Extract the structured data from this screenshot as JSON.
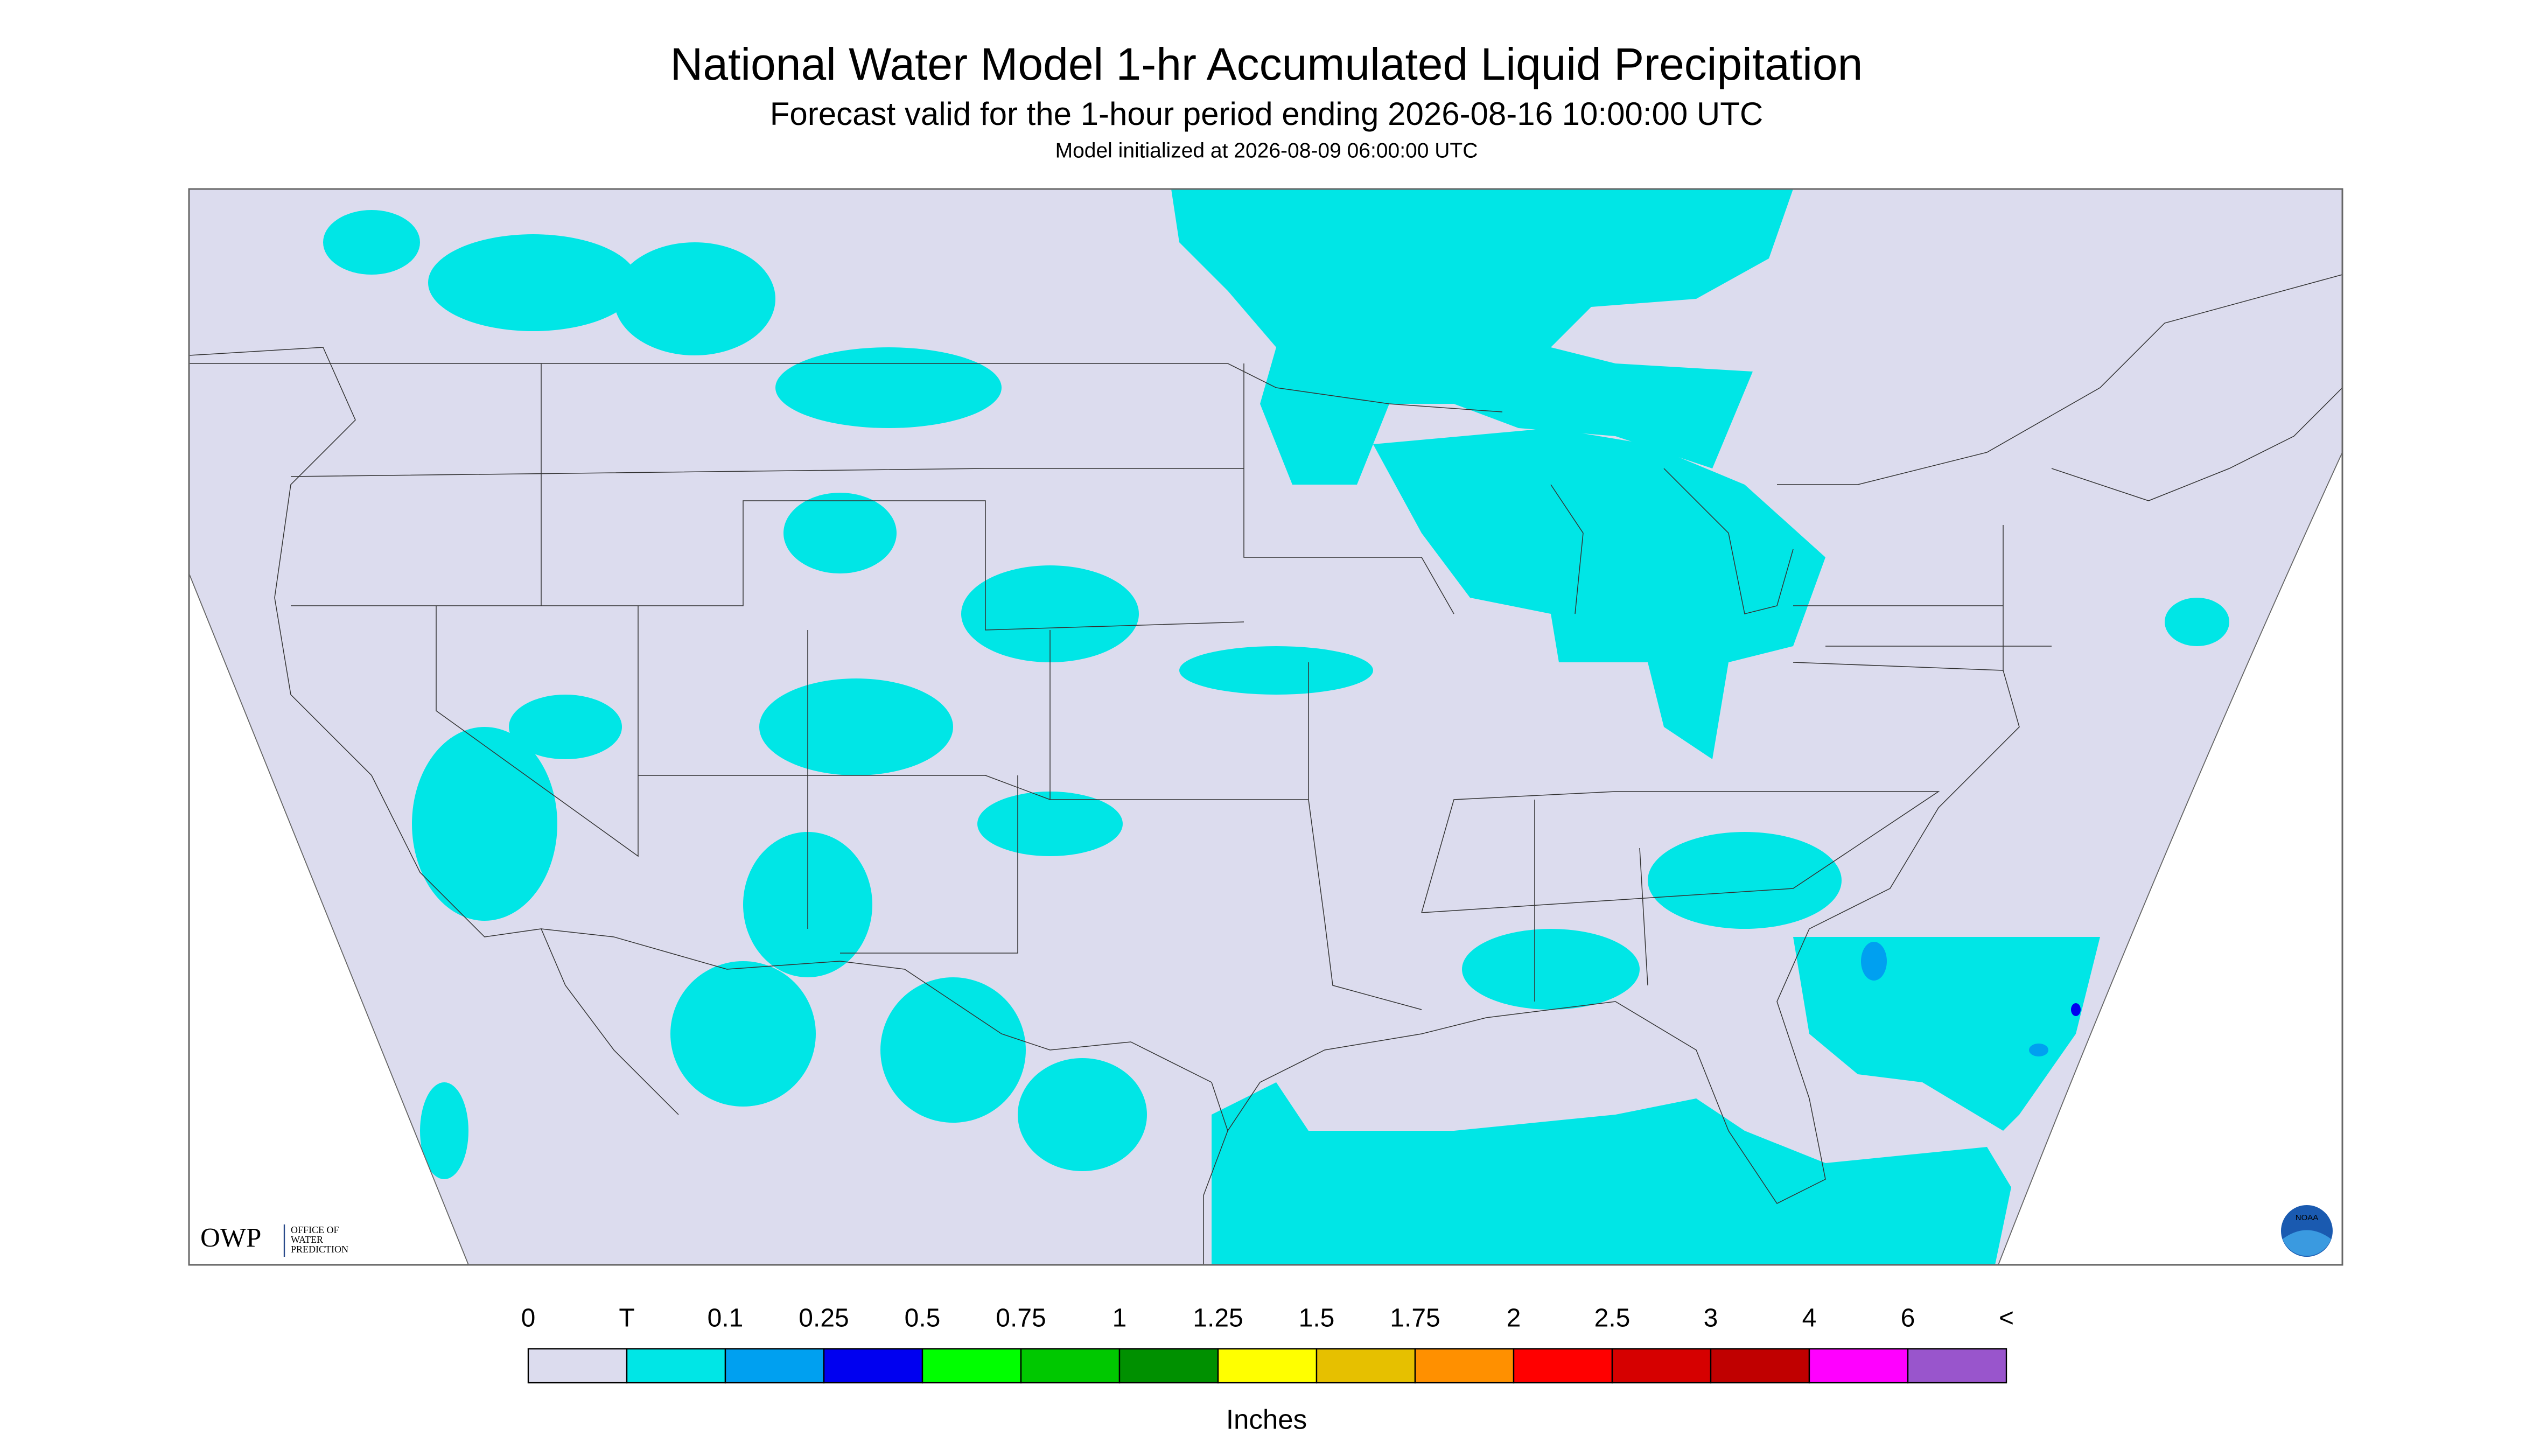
{
  "header": {
    "title": "National Water Model 1-hr Accumulated Liquid Precipitation",
    "subtitle": "Forecast valid for the 1-hour period ending 2026-08-16 10:00:00 UTC",
    "init": "Model initialized at 2026-08-09 06:00:00 UTC"
  },
  "logos": {
    "owp": "OWP",
    "owp_text": [
      "OFFICE OF",
      "WATER",
      "PREDICTION"
    ],
    "noaa": "NOAA"
  },
  "legend": {
    "labels": [
      "0",
      "T",
      "0.1",
      "0.25",
      "0.5",
      "0.75",
      "1",
      "1.25",
      "1.5",
      "1.75",
      "2",
      "2.5",
      "3",
      "4",
      "6",
      "<"
    ],
    "colors": [
      "#dcdcee",
      "#00e6e6",
      "#00a0f0",
      "#0000f0",
      "#00ff00",
      "#00c800",
      "#009000",
      "#ffff00",
      "#e6c000",
      "#ff9000",
      "#ff0000",
      "#d60000",
      "#c00000",
      "#ff00ff",
      "#9955cc"
    ],
    "unit": "Inches"
  }
}
